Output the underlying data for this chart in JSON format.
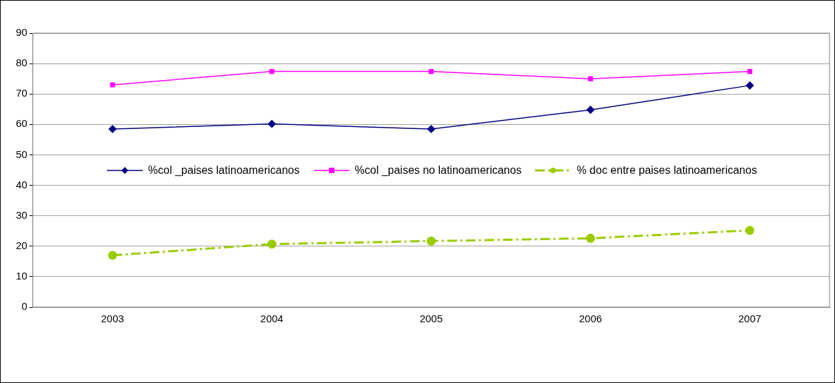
{
  "chart_data": {
    "type": "line",
    "categories": [
      "2003",
      "2004",
      "2005",
      "2006",
      "2007"
    ],
    "ylim": [
      0,
      90
    ],
    "yticks": [
      0,
      10,
      20,
      30,
      40,
      50,
      60,
      70,
      80,
      90
    ],
    "grid": "y",
    "legend": "center",
    "series": [
      {
        "name": "%col _paises latinoamericanos",
        "color": "#000080",
        "values": [
          58.5,
          60.2,
          58.5,
          64.8,
          72.8
        ],
        "marker": "diamond",
        "line_style": "solid"
      },
      {
        "name": "%col _paises no latinoamericanos",
        "color": "#ff00ff",
        "values": [
          73,
          77.4,
          77.4,
          75,
          77.4
        ],
        "marker": "square",
        "line_style": "solid"
      },
      {
        "name": "% doc entre paises latinoamericanos",
        "color": "#99cc00",
        "values": [
          17,
          20.7,
          21.7,
          22.6,
          25.2
        ],
        "marker": "circle",
        "line_style": "dashdot"
      }
    ]
  }
}
